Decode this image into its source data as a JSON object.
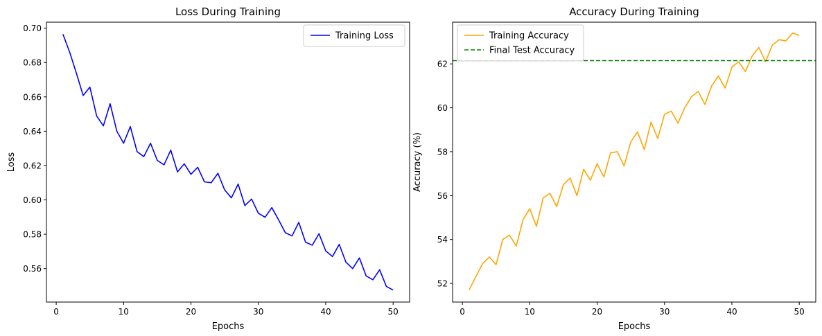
{
  "chart_data": [
    {
      "type": "line",
      "title": "Loss During Training",
      "xlabel": "Epochs",
      "ylabel": "Loss",
      "xlim": [
        -1.45,
        52.45
      ],
      "ylim": [
        0.5405,
        0.7035
      ],
      "xticks": [
        0,
        10,
        20,
        30,
        40,
        50
      ],
      "xtick_labels": [
        "0",
        "10",
        "20",
        "30",
        "40",
        "50"
      ],
      "yticks": [
        0.56,
        0.58,
        0.6,
        0.62,
        0.64,
        0.66,
        0.68,
        0.7
      ],
      "ytick_labels": [
        "0.56",
        "0.58",
        "0.60",
        "0.62",
        "0.64",
        "0.66",
        "0.68",
        "0.70"
      ],
      "legend_position": "top-right",
      "grid": false,
      "series": [
        {
          "name": "Training Loss",
          "color": "#0000ff",
          "style": "solid",
          "x": [
            1,
            2,
            3,
            4,
            5,
            6,
            7,
            8,
            9,
            10,
            11,
            12,
            13,
            14,
            15,
            16,
            17,
            18,
            19,
            20,
            21,
            22,
            23,
            24,
            25,
            26,
            27,
            28,
            29,
            30,
            31,
            32,
            33,
            34,
            35,
            36,
            37,
            38,
            39,
            40,
            41,
            42,
            43,
            44,
            45,
            46,
            47,
            48,
            49,
            50
          ],
          "values": [
            0.6965,
            0.686,
            0.6737,
            0.6608,
            0.6657,
            0.6489,
            0.6431,
            0.656,
            0.64,
            0.633,
            0.6427,
            0.6281,
            0.6252,
            0.633,
            0.623,
            0.6204,
            0.629,
            0.6163,
            0.621,
            0.6149,
            0.619,
            0.6105,
            0.61,
            0.6155,
            0.6058,
            0.6012,
            0.6092,
            0.5967,
            0.6005,
            0.5922,
            0.5899,
            0.5955,
            0.5884,
            0.5809,
            0.579,
            0.5869,
            0.5754,
            0.5736,
            0.5803,
            0.5703,
            0.567,
            0.5741,
            0.5637,
            0.56,
            0.5662,
            0.5557,
            0.5535,
            0.5593,
            0.5496,
            0.5475
          ]
        }
      ]
    },
    {
      "type": "line",
      "title": "Accuracy During Training",
      "xlabel": "Epochs",
      "ylabel": "Accuracy (%)",
      "xlim": [
        -1.45,
        52.45
      ],
      "ylim": [
        51.15,
        63.9
      ],
      "xticks": [
        0,
        10,
        20,
        30,
        40,
        50
      ],
      "xtick_labels": [
        "0",
        "10",
        "20",
        "30",
        "40",
        "50"
      ],
      "yticks": [
        52,
        54,
        56,
        58,
        60,
        62
      ],
      "ytick_labels": [
        "52",
        "54",
        "56",
        "58",
        "60",
        "62"
      ],
      "legend_position": "top-left",
      "grid": false,
      "series": [
        {
          "name": "Training Accuracy",
          "color": "#ffa500",
          "style": "solid",
          "x": [
            1,
            2,
            3,
            4,
            5,
            6,
            7,
            8,
            9,
            10,
            11,
            12,
            13,
            14,
            15,
            16,
            17,
            18,
            19,
            20,
            21,
            22,
            23,
            24,
            25,
            26,
            27,
            28,
            29,
            30,
            31,
            32,
            33,
            34,
            35,
            36,
            37,
            38,
            39,
            40,
            41,
            42,
            43,
            44,
            45,
            46,
            47,
            48,
            49,
            50
          ],
          "values": [
            51.7,
            52.3,
            52.9,
            53.2,
            52.85,
            54.0,
            54.2,
            53.7,
            54.9,
            55.4,
            54.6,
            55.9,
            56.1,
            55.5,
            56.5,
            56.8,
            56.0,
            57.2,
            56.7,
            57.45,
            56.85,
            57.95,
            58.0,
            57.35,
            58.45,
            58.9,
            58.1,
            59.35,
            58.6,
            59.7,
            59.85,
            59.3,
            60.0,
            60.5,
            60.75,
            60.15,
            61.0,
            61.45,
            60.9,
            61.85,
            62.1,
            61.65,
            62.35,
            62.75,
            62.1,
            62.85,
            63.1,
            63.05,
            63.4,
            63.3
          ]
        },
        {
          "name": "Final Test Accuracy",
          "color": "#008000",
          "style": "dashed",
          "hline": 62.15
        }
      ]
    }
  ]
}
